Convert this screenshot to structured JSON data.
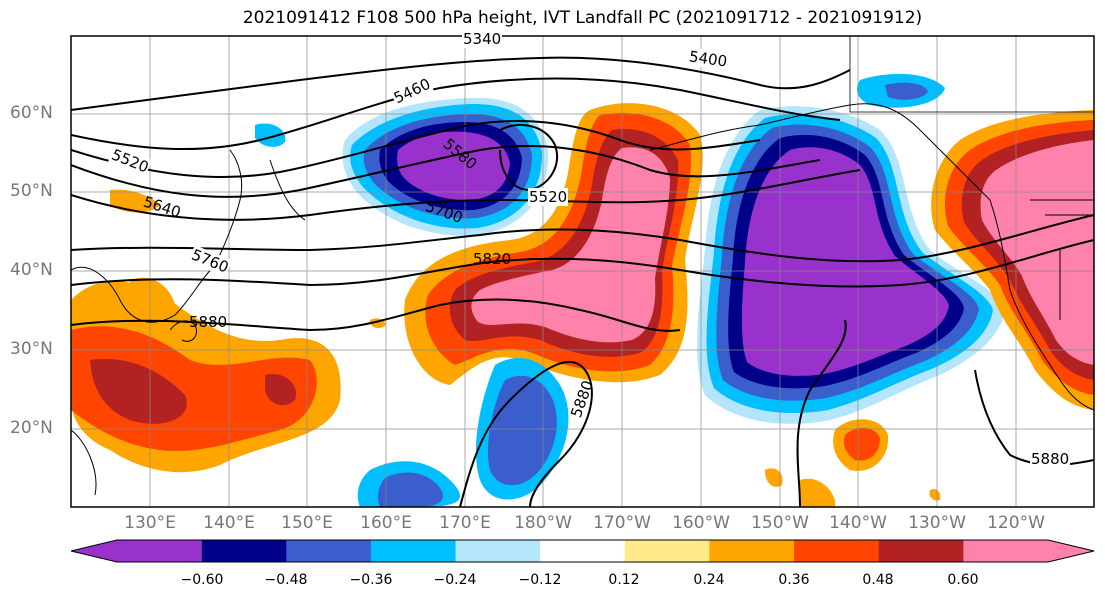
{
  "title": "2021091412 F108 500 hPa height, IVT Landfall PC (2021091712 - 2021091912)",
  "lat_labels": [
    "60°N",
    "50°N",
    "40°N",
    "30°N",
    "20°N"
  ],
  "lon_labels": [
    "130°E",
    "140°E",
    "150°E",
    "160°E",
    "170°E",
    "180°W",
    "170°W",
    "160°W",
    "150°W",
    "140°W",
    "130°W",
    "120°W"
  ],
  "contour_labels": [
    "5340",
    "5400",
    "5460",
    "5520",
    "5580",
    "5520",
    "5640",
    "5700",
    "5760",
    "5820",
    "5880",
    "5880",
    "5880"
  ],
  "colorbar": {
    "ticks": [
      "−0.60",
      "−0.48",
      "−0.36",
      "−0.24",
      "−0.12",
      "0.12",
      "0.24",
      "0.36",
      "0.48",
      "0.60"
    ],
    "colors": [
      "#9932CC",
      "#00008B",
      "#3A5FCD",
      "#00BFFF",
      "#B3E5FC",
      "#FFFFFF",
      "#FFEB8A",
      "#FFA500",
      "#FF4500",
      "#B22222",
      "#FF82AB"
    ]
  }
}
